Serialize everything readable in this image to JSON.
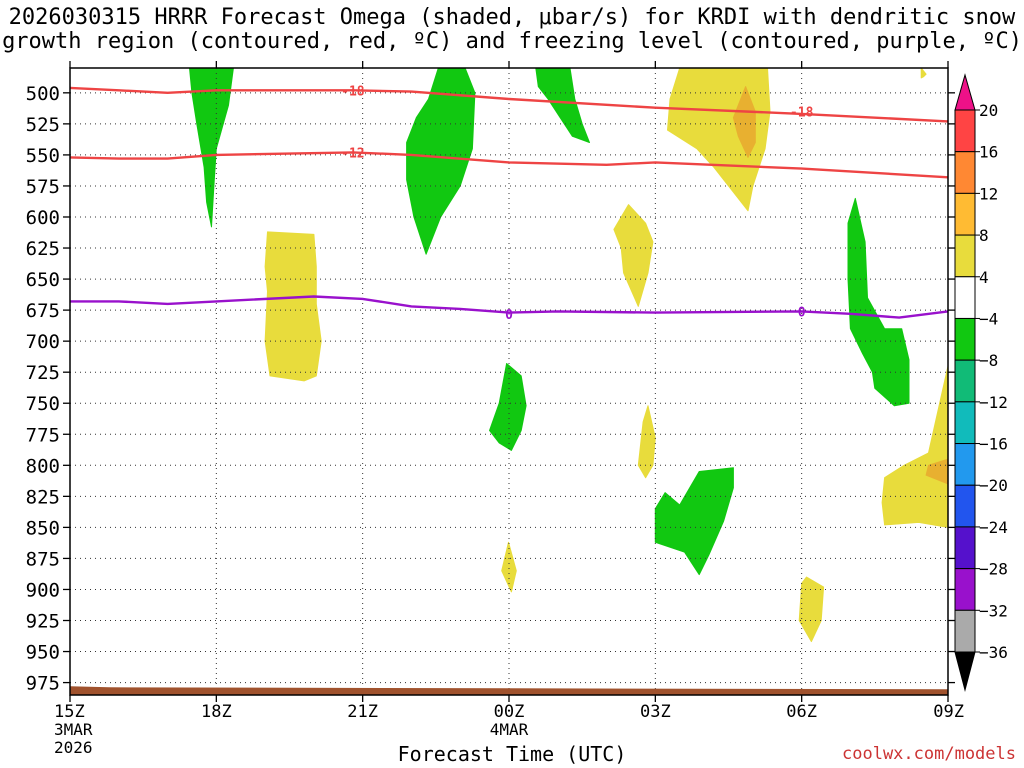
{
  "chart_data": {
    "type": "time-height",
    "title_line1": "2026030315 HRRR Forecast Omega (shaded, μbar/s) for KRDI with dendritic snow",
    "title_line2": "growth region (contoured, red, ºC) and freezing level (contoured, purple, ºC)",
    "xlabel": "Forecast Time (UTC)",
    "credit": "coolwx.com/models",
    "x_range_hours": [
      0,
      18
    ],
    "x_ticks": [
      {
        "hour": 0,
        "label": "15Z",
        "sub1": "3MAR",
        "sub2": "2026"
      },
      {
        "hour": 3,
        "label": "18Z"
      },
      {
        "hour": 6,
        "label": "21Z"
      },
      {
        "hour": 9,
        "label": "00Z",
        "sub1": "4MAR"
      },
      {
        "hour": 12,
        "label": "03Z"
      },
      {
        "hour": 15,
        "label": "06Z"
      },
      {
        "hour": 18,
        "label": "09Z"
      }
    ],
    "y_range_hpa": [
      480,
      985
    ],
    "y_ticks": [
      500,
      525,
      550,
      575,
      600,
      625,
      650,
      675,
      700,
      725,
      750,
      775,
      800,
      825,
      850,
      875,
      900,
      925,
      950,
      975
    ],
    "colorbar": {
      "levels": [
        "20",
        "16",
        "12",
        "8",
        "4",
        "−4",
        "−8",
        "−12",
        "−16",
        "−20",
        "−24",
        "−28",
        "−32",
        "−36"
      ],
      "bands": [
        "#ff4444",
        "#ff8833",
        "#ffbb33",
        "#e8dc3c",
        "#ffffff",
        "#11c811",
        "#11bb77",
        "#11bbbb",
        "#2299ee",
        "#2255ee",
        "#5511cc",
        "#9911cc",
        "#aaaaaa"
      ],
      "top_color": "#ee1188",
      "bottom_color": "#000000"
    },
    "omega_regions": [
      {
        "name": "neg-a",
        "color": "#11c811",
        "pts": [
          [
            2.45,
            480
          ],
          [
            3.35,
            480
          ],
          [
            3.25,
            510
          ],
          [
            3.0,
            545
          ],
          [
            2.95,
            575
          ],
          [
            2.9,
            608
          ],
          [
            2.8,
            588
          ],
          [
            2.75,
            560
          ],
          [
            2.6,
            525
          ],
          [
            2.5,
            500
          ]
        ]
      },
      {
        "name": "neg-b",
        "color": "#11c811",
        "pts": [
          [
            7.55,
            480
          ],
          [
            8.1,
            480
          ],
          [
            8.3,
            500
          ],
          [
            8.25,
            545
          ],
          [
            8.0,
            575
          ],
          [
            7.6,
            600
          ],
          [
            7.3,
            630
          ],
          [
            7.05,
            600
          ],
          [
            6.9,
            570
          ],
          [
            6.9,
            540
          ],
          [
            7.1,
            520
          ],
          [
            7.35,
            505
          ]
        ]
      },
      {
        "name": "neg-c",
        "color": "#11c811",
        "pts": [
          [
            9.55,
            480
          ],
          [
            10.25,
            480
          ],
          [
            10.35,
            505
          ],
          [
            10.5,
            525
          ],
          [
            10.65,
            540
          ],
          [
            10.3,
            535
          ],
          [
            10.05,
            520
          ],
          [
            9.8,
            505
          ],
          [
            9.6,
            495
          ]
        ]
      },
      {
        "name": "neg-d",
        "color": "#11c811",
        "pts": [
          [
            8.95,
            718
          ],
          [
            9.25,
            728
          ],
          [
            9.35,
            752
          ],
          [
            9.25,
            772
          ],
          [
            9.05,
            788
          ],
          [
            8.8,
            782
          ],
          [
            8.6,
            772
          ],
          [
            8.8,
            750
          ]
        ]
      },
      {
        "name": "neg-e",
        "color": "#11c811",
        "pts": [
          [
            12.5,
            832
          ],
          [
            12.9,
            805
          ],
          [
            13.6,
            802
          ],
          [
            13.6,
            818
          ],
          [
            13.4,
            845
          ],
          [
            13.1,
            872
          ],
          [
            12.9,
            888
          ],
          [
            12.6,
            870
          ],
          [
            12.0,
            862
          ],
          [
            12.0,
            835
          ],
          [
            12.2,
            822
          ]
        ]
      },
      {
        "name": "neg-f",
        "color": "#11c811",
        "pts": [
          [
            16.1,
            585
          ],
          [
            16.3,
            620
          ],
          [
            16.35,
            665
          ],
          [
            16.7,
            690
          ],
          [
            17.05,
            690
          ],
          [
            17.2,
            715
          ],
          [
            17.2,
            750
          ],
          [
            16.9,
            752
          ],
          [
            16.5,
            738
          ],
          [
            16.45,
            725
          ],
          [
            16.25,
            710
          ],
          [
            16.0,
            690
          ],
          [
            15.95,
            650
          ],
          [
            15.95,
            605
          ]
        ]
      },
      {
        "name": "pos-a",
        "color": "#e8dc3c",
        "pts": [
          [
            4.05,
            612
          ],
          [
            5.0,
            614
          ],
          [
            5.05,
            640
          ],
          [
            5.05,
            670
          ],
          [
            5.15,
            700
          ],
          [
            5.05,
            728
          ],
          [
            4.8,
            732
          ],
          [
            4.1,
            728
          ],
          [
            4.0,
            700
          ],
          [
            4.05,
            660
          ],
          [
            4.0,
            640
          ]
        ]
      },
      {
        "name": "pos-b",
        "color": "#e8dc3c",
        "pts": [
          [
            12.5,
            480
          ],
          [
            14.3,
            480
          ],
          [
            14.35,
            515
          ],
          [
            14.25,
            545
          ],
          [
            14.0,
            575
          ],
          [
            13.9,
            595
          ],
          [
            13.6,
            580
          ],
          [
            13.2,
            560
          ],
          [
            12.85,
            545
          ],
          [
            12.25,
            530
          ],
          [
            12.3,
            505
          ]
        ]
      },
      {
        "name": "pos-c",
        "color": "#e8dc3c",
        "pts": [
          [
            11.45,
            590
          ],
          [
            11.8,
            605
          ],
          [
            11.95,
            620
          ],
          [
            11.85,
            645
          ],
          [
            11.65,
            672
          ],
          [
            11.35,
            645
          ],
          [
            11.3,
            625
          ],
          [
            11.15,
            610
          ]
        ]
      },
      {
        "name": "pos-d",
        "color": "#e8dc3c",
        "pts": [
          [
            11.85,
            752
          ],
          [
            12.0,
            778
          ],
          [
            11.95,
            800
          ],
          [
            11.8,
            810
          ],
          [
            11.65,
            800
          ],
          [
            11.75,
            765
          ]
        ]
      },
      {
        "name": "pos-e",
        "color": "#e8dc3c",
        "pts": [
          [
            8.99,
            862
          ],
          [
            9.15,
            885
          ],
          [
            9.05,
            902
          ],
          [
            8.85,
            885
          ]
        ]
      },
      {
        "name": "pos-f",
        "color": "#e8dc3c",
        "pts": [
          [
            15.1,
            890
          ],
          [
            15.45,
            898
          ],
          [
            15.4,
            925
          ],
          [
            15.2,
            942
          ],
          [
            14.95,
            925
          ],
          [
            15.0,
            895
          ]
        ]
      },
      {
        "name": "pos-g",
        "color": "#e8dc3c",
        "pts": [
          [
            18.0,
            720
          ],
          [
            18.0,
            850
          ],
          [
            17.4,
            846
          ],
          [
            16.7,
            848
          ],
          [
            16.65,
            830
          ],
          [
            16.7,
            810
          ],
          [
            17.1,
            800
          ],
          [
            17.6,
            790
          ]
        ]
      },
      {
        "name": "pos-h",
        "color": "#e8dc3c",
        "pts": [
          [
            17.45,
            480
          ],
          [
            17.55,
            485
          ],
          [
            17.5,
            487
          ],
          [
            17.45,
            488
          ]
        ]
      },
      {
        "name": "pos8-a",
        "color": "#e8b030",
        "pts": [
          [
            13.85,
            495
          ],
          [
            14.05,
            515
          ],
          [
            14.05,
            540
          ],
          [
            13.9,
            552
          ],
          [
            13.7,
            535
          ],
          [
            13.6,
            520
          ],
          [
            13.75,
            505
          ]
        ]
      },
      {
        "name": "pos8-b",
        "color": "#e8b030",
        "pts": [
          [
            17.6,
            800
          ],
          [
            18.0,
            795
          ],
          [
            18.0,
            815
          ],
          [
            17.55,
            808
          ]
        ]
      }
    ],
    "contours": [
      {
        "name": "minus18-line",
        "color": "#ee4444",
        "label": "-18",
        "label_at": [
          5.8,
          498
        ],
        "pts": [
          [
            0,
            496
          ],
          [
            1,
            498
          ],
          [
            2,
            500
          ],
          [
            3,
            498
          ],
          [
            5.8,
            498
          ],
          [
            7,
            499
          ],
          [
            9,
            505
          ],
          [
            12,
            512
          ],
          [
            15,
            517
          ],
          [
            18,
            523
          ]
        ]
      },
      {
        "name": "minus12-line",
        "color": "#ee4444",
        "label": "-12",
        "label_at": [
          5.8,
          548
        ],
        "pts": [
          [
            0,
            552
          ],
          [
            1,
            553
          ],
          [
            2,
            553
          ],
          [
            3,
            550
          ],
          [
            5.8,
            548
          ],
          [
            7,
            550
          ],
          [
            9,
            556
          ],
          [
            11,
            558
          ],
          [
            12,
            556
          ],
          [
            15,
            561
          ],
          [
            18,
            568
          ]
        ]
      },
      {
        "name": "freezing-level",
        "color": "#9911cc",
        "label": "0",
        "label_at": [
          9.0,
          678
        ],
        "pts": [
          [
            0,
            668
          ],
          [
            1,
            668
          ],
          [
            2,
            670
          ],
          [
            3,
            668
          ],
          [
            5,
            664
          ],
          [
            6,
            666
          ],
          [
            7,
            672
          ],
          [
            8,
            674
          ],
          [
            9,
            677
          ],
          [
            10,
            676
          ],
          [
            12,
            677
          ],
          [
            15,
            676
          ],
          [
            16,
            678
          ],
          [
            17,
            681
          ],
          [
            18,
            676
          ]
        ]
      }
    ],
    "extra_labels": [
      {
        "text": "-18",
        "at": [
          15.0,
          515
        ],
        "color": "#ee4444"
      },
      {
        "text": "0",
        "at": [
          15.0,
          676
        ],
        "color": "#9911cc"
      }
    ],
    "terrain": {
      "color": "#a0522d",
      "top_hpa": 978
    }
  }
}
